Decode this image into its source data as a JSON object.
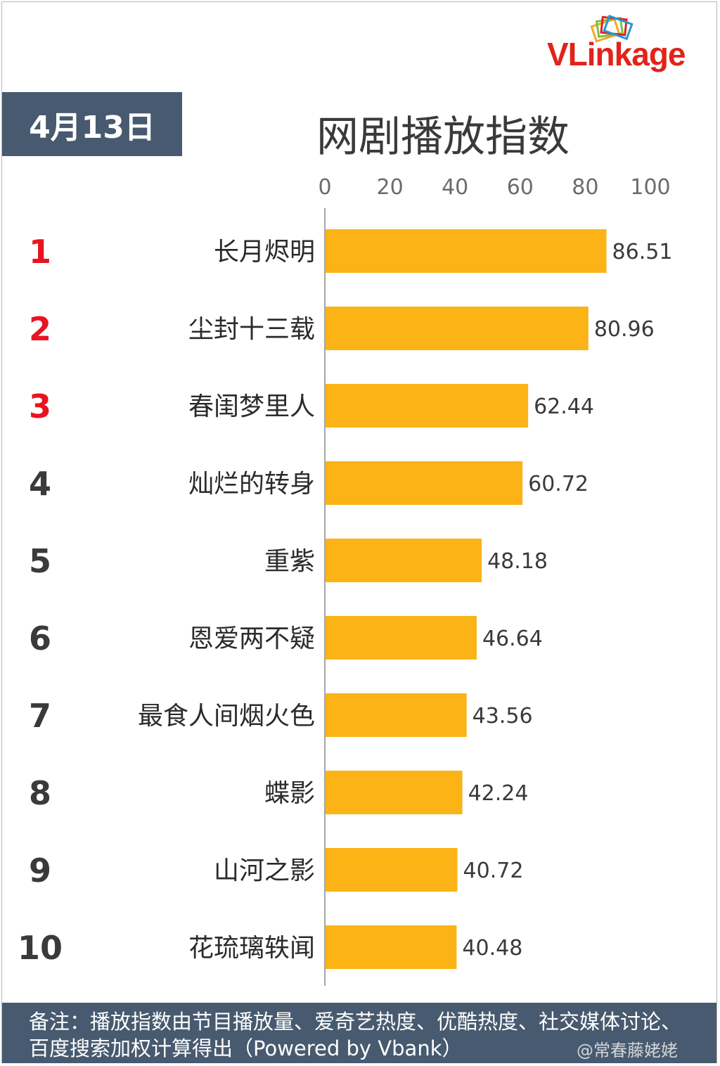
{
  "date_label": "4月13日",
  "logo": {
    "brand": "VLinkage"
  },
  "chart_data": {
    "type": "bar",
    "orientation": "horizontal",
    "title": "网剧播放指数",
    "xlim": [
      0,
      100
    ],
    "xticks": [
      0,
      20,
      40,
      60,
      80,
      100
    ],
    "grid": false,
    "bar_color": "#fbb316",
    "top_rank_color": "#e8141f",
    "rank_color": "#3a3a3a",
    "ranks": [
      "1",
      "2",
      "3",
      "4",
      "5",
      "6",
      "7",
      "8",
      "9",
      "10"
    ],
    "categories": [
      "长月烬明",
      "尘封十三载",
      "春闺梦里人",
      "灿烂的转身",
      "重紫",
      "恩爱两不疑",
      "最食人间烟火色",
      "蝶影",
      "山河之影",
      "花琉璃轶闻"
    ],
    "values": [
      86.51,
      80.96,
      62.44,
      60.72,
      48.18,
      46.64,
      43.56,
      42.24,
      40.72,
      40.48
    ],
    "value_labels": [
      "86.51",
      "80.96",
      "62.44",
      "60.72",
      "48.18",
      "46.64",
      "43.56",
      "42.24",
      "40.72",
      "40.48"
    ]
  },
  "footer": {
    "note": "备注：播放指数由节目播放量、爱奇艺热度、优酷热度、社交媒体讨论、百度搜索加权计算得出（Powered by Vbank）"
  },
  "watermark": "@常春藤姥姥"
}
